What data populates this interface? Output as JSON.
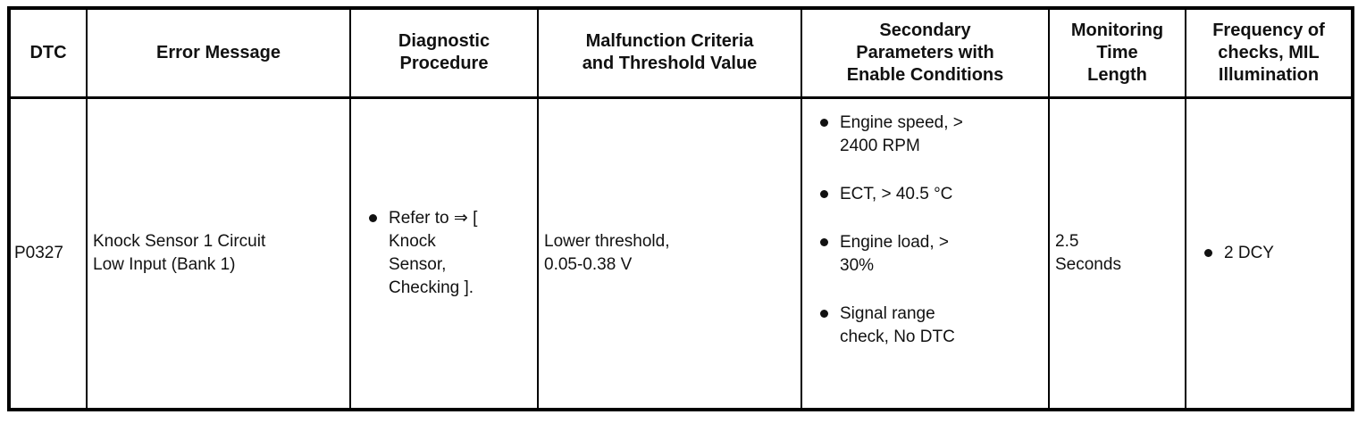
{
  "colors": {
    "border": "#000000",
    "text": "#111111",
    "background": "#ffffff"
  },
  "table": {
    "headers": [
      "DTC",
      "Error Message",
      "Diagnostic\nProcedure",
      "Malfunction Criteria\nand Threshold Value",
      "Secondary\nParameters with\nEnable Conditions",
      "Monitoring\nTime\nLength",
      "Frequency of\nchecks, MIL\nIllumination"
    ],
    "rows": [
      {
        "dtc": "P0327",
        "error_message": "Knock Sensor 1 Circuit\nLow Input (Bank 1)",
        "diagnostic_procedure": [
          "Refer to ⇒ [\nKnock\nSensor,\nChecking ]."
        ],
        "malfunction_criteria": "Lower threshold,\n0.05-0.38 V",
        "secondary_parameters": [
          "Engine speed, >\n2400 RPM",
          "ECT, > 40.5 °C",
          "Engine load, >\n30%",
          "Signal range\ncheck, No DTC"
        ],
        "monitoring_time": "2.5\nSeconds",
        "frequency_of_checks": [
          "2 DCY"
        ]
      }
    ]
  }
}
